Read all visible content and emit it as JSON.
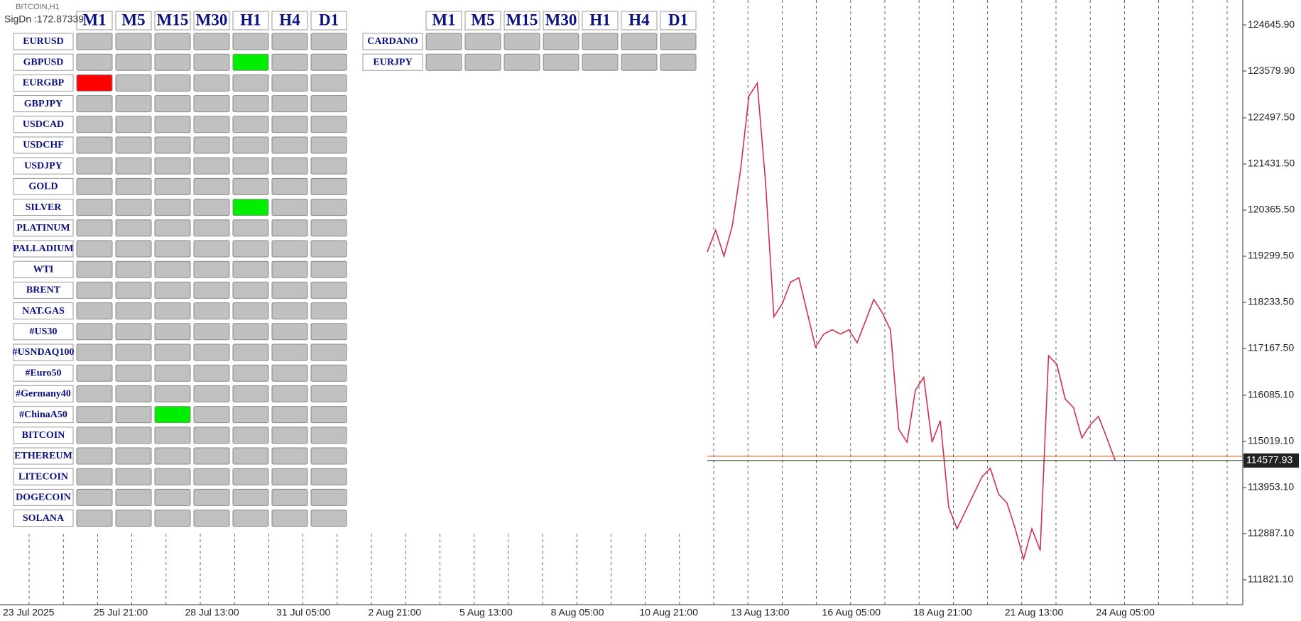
{
  "window": {
    "title": "BITCOIN,H1",
    "status": "SigDn :172.87339"
  },
  "panel_left": {
    "timeframes": [
      "M1",
      "M5",
      "M15",
      "M30",
      "H1",
      "H4",
      "D1"
    ],
    "symbols": [
      "EURUSD",
      "GBPUSD",
      "EURGBP",
      "GBPJPY",
      "USDCAD",
      "USDCHF",
      "USDJPY",
      "GOLD",
      "SILVER",
      "PLATINUM",
      "PALLADIUM",
      "WTI",
      "BRENT",
      "NAT.GAS",
      "#US30",
      "#USNDAQ100",
      "#Euro50",
      "#Germany40",
      "#ChinaA50",
      "BITCOIN",
      "ETHEREUM",
      "LITECOIN",
      "DOGECOIN",
      "SOLANA"
    ],
    "highlights": [
      {
        "row": 1,
        "col": 4,
        "color": "#00ee00"
      },
      {
        "row": 2,
        "col": 0,
        "color": "#ff0000"
      },
      {
        "row": 8,
        "col": 4,
        "color": "#00ee00"
      },
      {
        "row": 18,
        "col": 2,
        "color": "#00ee00"
      }
    ]
  },
  "panel_right": {
    "timeframes": [
      "M1",
      "M5",
      "M15",
      "M30",
      "H1",
      "H4",
      "D1"
    ],
    "symbols": [
      "CARDANO",
      "EURJPY"
    ]
  },
  "price_axis": {
    "ylim": [
      111246,
      125221
    ],
    "ticks": [
      {
        "value": 124645.9,
        "label": "124645.90"
      },
      {
        "value": 123579.9,
        "label": "123579.90"
      },
      {
        "value": 122497.5,
        "label": "122497.50"
      },
      {
        "value": 121431.5,
        "label": "121431.50"
      },
      {
        "value": 120365.5,
        "label": "120365.50"
      },
      {
        "value": 119299.5,
        "label": "119299.50"
      },
      {
        "value": 118233.5,
        "label": "118233.50"
      },
      {
        "value": 117167.5,
        "label": "117167.50"
      },
      {
        "value": 116085.1,
        "label": "116085.10"
      },
      {
        "value": 115019.1,
        "label": "115019.10"
      },
      {
        "value": 113953.1,
        "label": "113953.10"
      },
      {
        "value": 112887.1,
        "label": "112887.10"
      },
      {
        "value": 111821.1,
        "label": "111821.10"
      }
    ],
    "last_price": 114577.93
  },
  "time_axis": {
    "labels": [
      "23 Jul 2025",
      "25 Jul 21:00",
      "28 Jul 13:00",
      "31 Jul 05:00",
      "2 Aug 21:00",
      "5 Aug 13:00",
      "8 Aug 05:00",
      "10 Aug 21:00",
      "13 Aug 13:00",
      "16 Aug 05:00",
      "18 Aug 21:00",
      "21 Aug 13:00",
      "24 Aug 05:00"
    ]
  },
  "price_series": {
    "color": "#d03050",
    "values": [
      119400,
      119900,
      119300,
      120000,
      121300,
      123000,
      123300,
      121000,
      117900,
      118200,
      118700,
      118800,
      118000,
      117200,
      117500,
      117600,
      117500,
      117600,
      117300,
      117800,
      118300,
      118000,
      117600,
      115300,
      115000,
      116200,
      116500,
      115000,
      115500,
      113500,
      113000,
      113400,
      113800,
      114200,
      114400,
      113800,
      113600,
      113000,
      112300,
      113000,
      112500,
      117000,
      116800,
      116000,
      115800,
      115100,
      115400,
      115600,
      115100,
      114580
    ]
  }
}
